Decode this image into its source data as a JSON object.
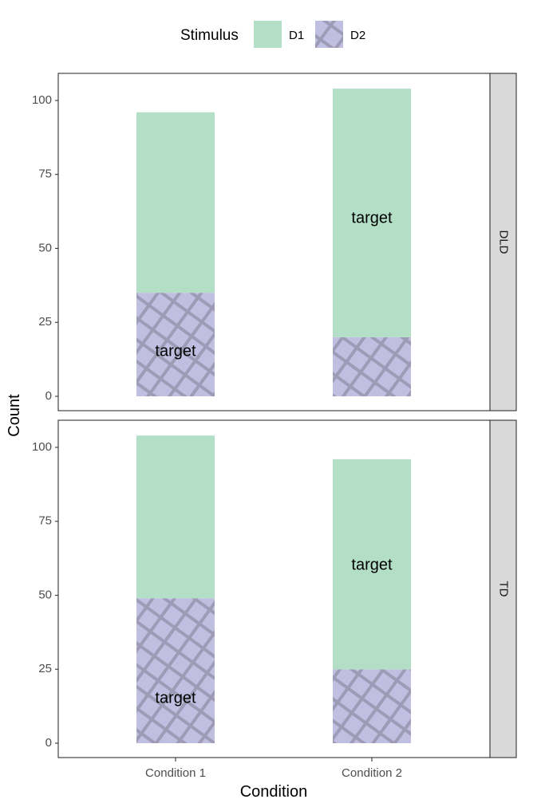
{
  "chart_data": {
    "type": "bar",
    "stacked": true,
    "facet": "rows",
    "xlabel": "Condition",
    "ylabel": "Count",
    "categories": [
      "Condition 1",
      "Condition 2"
    ],
    "ylim": [
      0,
      108
    ],
    "yticks": [
      0,
      25,
      50,
      75,
      100
    ],
    "legend": {
      "title": "Stimulus",
      "position": "top",
      "entries": [
        {
          "name": "D1",
          "color": "#b2dfc6",
          "pattern": "none"
        },
        {
          "name": "D2",
          "color": "#c0bfe2",
          "pattern": "crosshatch"
        }
      ]
    },
    "panels": [
      {
        "strip": "DLD",
        "series": [
          {
            "name": "D2",
            "values": [
              35,
              20
            ]
          },
          {
            "name": "D1",
            "values": [
              61,
              84
            ]
          }
        ],
        "annotations": [
          {
            "text": "target",
            "category": "Condition 1",
            "y": 15
          },
          {
            "text": "target",
            "category": "Condition 2",
            "y": 60
          }
        ]
      },
      {
        "strip": "TD",
        "series": [
          {
            "name": "D2",
            "values": [
              49,
              25
            ]
          },
          {
            "name": "D1",
            "values": [
              55,
              71
            ]
          }
        ],
        "annotations": [
          {
            "text": "target",
            "category": "Condition 1",
            "y": 15
          },
          {
            "text": "target",
            "category": "Condition 2",
            "y": 60
          }
        ]
      }
    ],
    "grid": false
  }
}
